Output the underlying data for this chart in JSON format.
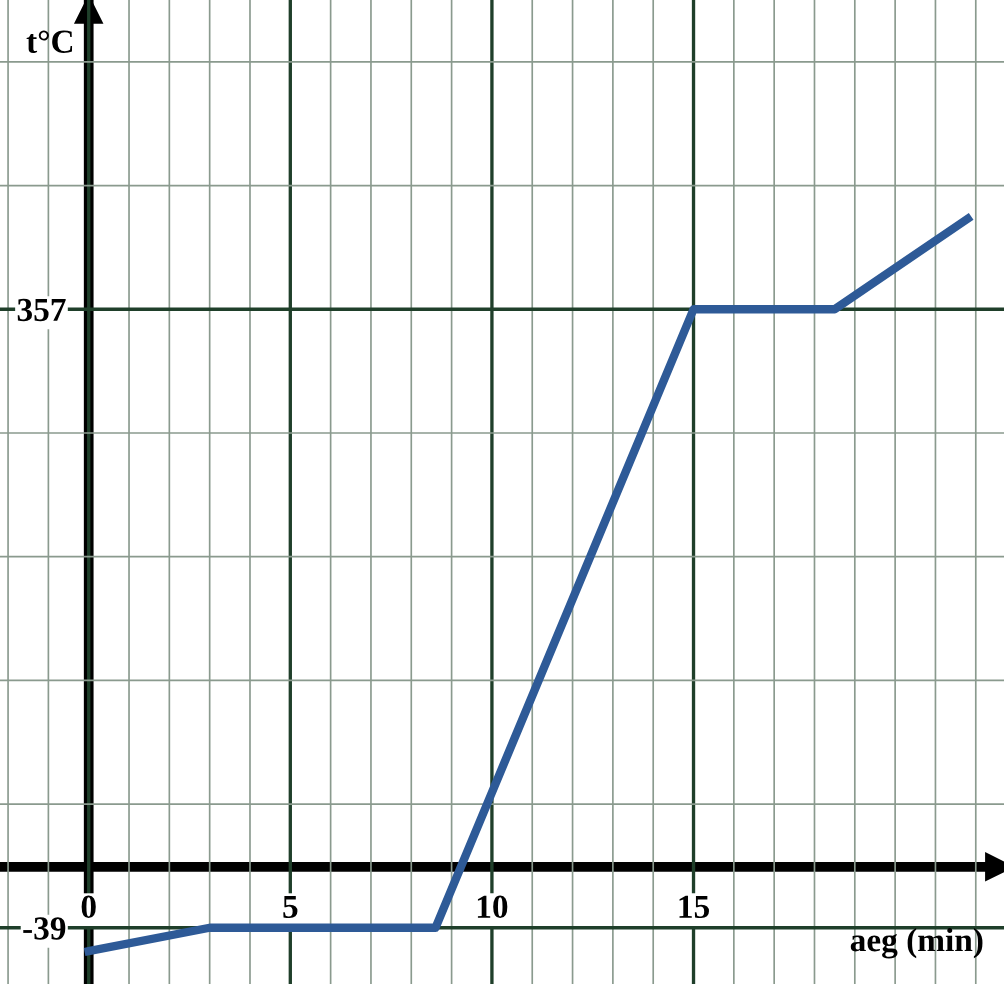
{
  "chart_data": {
    "type": "line",
    "xlabel": "aeg (min)",
    "ylabel": "t°C",
    "x": [
      0,
      3,
      8.6,
      15,
      18.5,
      21.8
    ],
    "series": [
      {
        "color": "#2e5a97",
        "values": [
          -54,
          -39,
          -39,
          357,
          357,
          415
        ]
      }
    ],
    "xlim": [
      -2.2,
      22.7
    ],
    "ylim": [
      -75,
      555
    ],
    "xticks": [
      0,
      5,
      10,
      15
    ],
    "yticks": [
      -39,
      357
    ],
    "grid": true,
    "marker": "none",
    "line_style": "solid",
    "legend": false
  }
}
